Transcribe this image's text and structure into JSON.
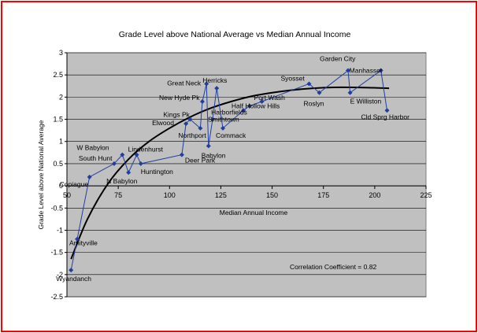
{
  "chart_data": {
    "type": "scatter",
    "title": "Grade Level above National Average vs Median Annual Income",
    "xlabel": "Median Annual Income",
    "ylabel": "Grade Level above National Average",
    "xlim": [
      50,
      225
    ],
    "ylim": [
      -2.5,
      3
    ],
    "x_ticks": [
      "50",
      "75",
      "100",
      "125",
      "150",
      "175",
      "200",
      "225"
    ],
    "y_ticks": [
      "-2.5",
      "-2",
      "-1.5",
      "-1",
      "-0.5",
      "0",
      "0.5",
      "1",
      "1.5",
      "2",
      "2.5",
      "3"
    ],
    "grid": true,
    "plot_background": "#c0c0c0",
    "colors": {
      "series": "#1f3ea0",
      "trend": "#000000",
      "frame": "#ff0000"
    },
    "series": [
      {
        "points": [
          {
            "x": 52,
            "y": -1.9,
            "label": "Wyandanch"
          },
          {
            "x": 55,
            "y": -1.2,
            "label": "Amityville"
          },
          {
            "x": 61,
            "y": 0.2,
            "label": "Copiague"
          },
          {
            "x": 73,
            "y": 0.5,
            "label": "South Hunt"
          },
          {
            "x": 77,
            "y": 0.7,
            "label": "W Babylon"
          },
          {
            "x": 80,
            "y": 0.3,
            "label": "N Babylon"
          },
          {
            "x": 84,
            "y": 0.7,
            "label": "Lindenhurst"
          },
          {
            "x": 86,
            "y": 0.5,
            "label": "Huntington"
          },
          {
            "x": 106,
            "y": 0.7,
            "label": "Deer Park"
          },
          {
            "x": 108,
            "y": 1.4,
            "label": "Elwood"
          },
          {
            "x": 110,
            "y": 1.5,
            "label": "Kings Pk"
          },
          {
            "x": 115,
            "y": 1.3,
            "label": "Northport"
          },
          {
            "x": 116,
            "y": 1.9,
            "label": "New Hyde Pk"
          },
          {
            "x": 118,
            "y": 2.3,
            "label": "Great Neck"
          },
          {
            "x": 119,
            "y": 0.9,
            "label": "Babylon"
          },
          {
            "x": 121,
            "y": 1.5,
            "label": "Smithtown"
          },
          {
            "x": 123,
            "y": 2.2,
            "label": "Herricks"
          },
          {
            "x": 126,
            "y": 1.3,
            "label": "Commack"
          },
          {
            "x": 136,
            "y": 1.7,
            "label": "Harborfields"
          },
          {
            "x": 139,
            "y": 1.8,
            "label": "Half Hollow Hills"
          },
          {
            "x": 145,
            "y": 1.9,
            "label": "Port Wash"
          },
          {
            "x": 168,
            "y": 2.3,
            "label": "Syosset"
          },
          {
            "x": 173,
            "y": 2.1,
            "label": "Roslyn"
          },
          {
            "x": 187,
            "y": 2.6,
            "label": "Garden City"
          },
          {
            "x": 188,
            "y": 2.1,
            "label": "E Williston"
          },
          {
            "x": 203,
            "y": 2.6,
            "label": "Manhasset"
          },
          {
            "x": 206,
            "y": 1.7,
            "label": "Cld Sprg Harbor"
          }
        ]
      }
    ],
    "trend_line": [
      {
        "x": 52,
        "y": -1.65
      },
      {
        "x": 60,
        "y": -0.75
      },
      {
        "x": 70,
        "y": 0.05
      },
      {
        "x": 80,
        "y": 0.6
      },
      {
        "x": 90,
        "y": 1.0
      },
      {
        "x": 100,
        "y": 1.3
      },
      {
        "x": 110,
        "y": 1.55
      },
      {
        "x": 120,
        "y": 1.75
      },
      {
        "x": 130,
        "y": 1.9
      },
      {
        "x": 140,
        "y": 2.02
      },
      {
        "x": 150,
        "y": 2.1
      },
      {
        "x": 160,
        "y": 2.16
      },
      {
        "x": 170,
        "y": 2.2
      },
      {
        "x": 180,
        "y": 2.22
      },
      {
        "x": 190,
        "y": 2.22
      },
      {
        "x": 200,
        "y": 2.21
      },
      {
        "x": 207,
        "y": 2.2
      }
    ],
    "annotation": "Correlation Coefficient = 0.82"
  }
}
